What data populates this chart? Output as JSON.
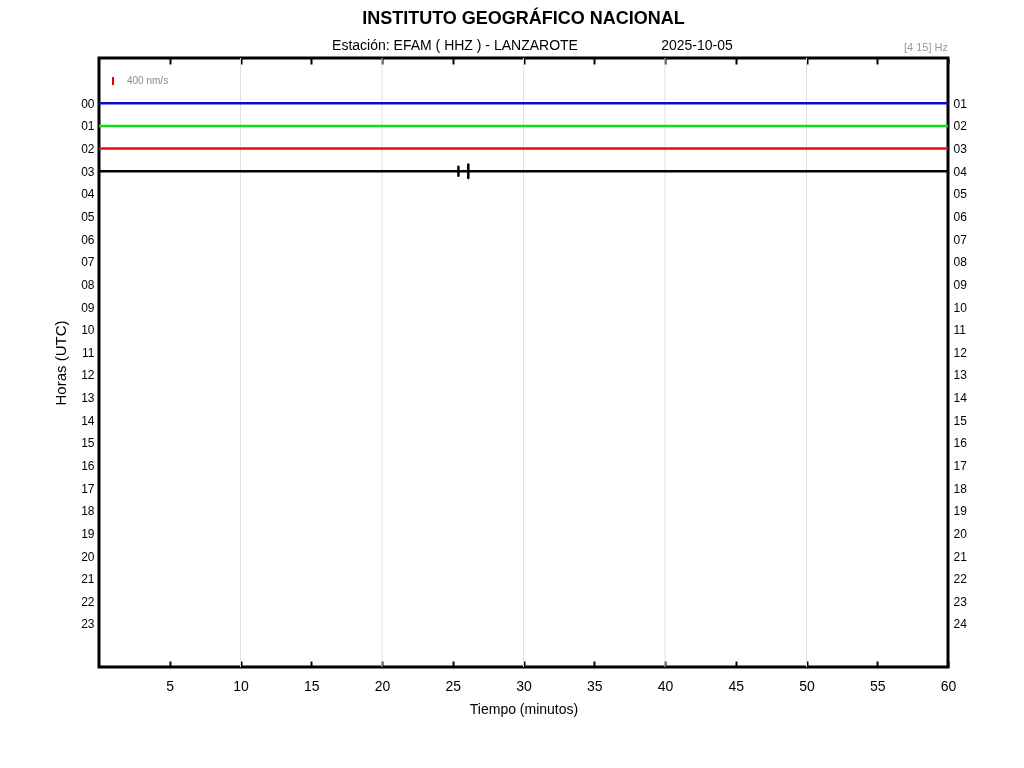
{
  "chart_data": {
    "type": "line",
    "title": "INSTITUTO GEOGRÁFICO NACIONAL",
    "subtitle": "Estación: EFAM ( HHZ ) - LANZAROTE",
    "xlabel": "Tiempo (minutos)",
    "ylabel": "Horas (UTC)",
    "annotations": [
      "2025-10-05",
      "[4 15] Hz",
      "400 nm/s"
    ],
    "series": [
      {
        "color": "#0a0ac8",
        "x": [
          0,
          60
        ],
        "values": [
          0,
          0
        ]
      },
      {
        "color": "#10e010",
        "x": [
          0,
          60
        ],
        "values": [
          1,
          1
        ]
      },
      {
        "color": "#e01010",
        "x": [
          0,
          60
        ],
        "values": [
          2,
          2
        ]
      },
      {
        "color": "#000000",
        "x": [
          0,
          25.4,
          25.4,
          25.4,
          25.4,
          26.1,
          26.1,
          26.1,
          26.1,
          60
        ],
        "values": [
          3,
          3,
          2.8,
          3.2,
          3,
          3,
          2.7,
          3.3,
          3,
          3
        ]
      }
    ],
    "xlim": [
      0,
      60
    ],
    "xticks": [
      5,
      10,
      15,
      20,
      25,
      30,
      35,
      40,
      45,
      50,
      55,
      60
    ],
    "ylim": [
      24.9,
      -2
    ],
    "yticks": [
      {
        "value": 0,
        "label": "00"
      },
      {
        "value": 1,
        "label": "01"
      },
      {
        "value": 2,
        "label": "02"
      },
      {
        "value": 3,
        "label": "03"
      },
      {
        "value": 4,
        "label": "04"
      },
      {
        "value": 5,
        "label": "05"
      },
      {
        "value": 6,
        "label": "06"
      },
      {
        "value": 7,
        "label": "07"
      },
      {
        "value": 8,
        "label": "08"
      },
      {
        "value": 9,
        "label": "09"
      },
      {
        "value": 10,
        "label": "10"
      },
      {
        "value": 11,
        "label": "11"
      },
      {
        "value": 12,
        "label": "12"
      },
      {
        "value": 13,
        "label": "13"
      },
      {
        "value": 14,
        "label": "14"
      },
      {
        "value": 15,
        "label": "15"
      },
      {
        "value": 16,
        "label": "16"
      },
      {
        "value": 17,
        "label": "17"
      },
      {
        "value": 18,
        "label": "18"
      },
      {
        "value": 19,
        "label": "19"
      },
      {
        "value": 20,
        "label": "20"
      },
      {
        "value": 21,
        "label": "21"
      },
      {
        "value": 22,
        "label": "22"
      },
      {
        "value": 23,
        "label": "23"
      }
    ],
    "y2lim": [
      25.9,
      -1
    ],
    "y2ticks": [
      {
        "value": 1,
        "label": "01"
      },
      {
        "value": 2,
        "label": "02"
      },
      {
        "value": 3,
        "label": "03"
      },
      {
        "value": 4,
        "label": "04"
      },
      {
        "value": 5,
        "label": "05"
      },
      {
        "value": 6,
        "label": "06"
      },
      {
        "value": 7,
        "label": "07"
      },
      {
        "value": 8,
        "label": "08"
      },
      {
        "value": 9,
        "label": "09"
      },
      {
        "value": 10,
        "label": "10"
      },
      {
        "value": 11,
        "label": "11"
      },
      {
        "value": 12,
        "label": "12"
      },
      {
        "value": 13,
        "label": "13"
      },
      {
        "value": 14,
        "label": "14"
      },
      {
        "value": 15,
        "label": "15"
      },
      {
        "value": 16,
        "label": "16"
      },
      {
        "value": 17,
        "label": "17"
      },
      {
        "value": 18,
        "label": "18"
      },
      {
        "value": 19,
        "label": "19"
      },
      {
        "value": 20,
        "label": "20"
      },
      {
        "value": 21,
        "label": "21"
      },
      {
        "value": 22,
        "label": "22"
      },
      {
        "value": 23,
        "label": "23"
      },
      {
        "value": 24,
        "label": "24"
      }
    ],
    "ref_lines": [
      {
        "axis": "x",
        "value": 10,
        "color": "#e0e0e0"
      },
      {
        "axis": "x",
        "value": 20,
        "color": "#e0e0e0"
      },
      {
        "axis": "x",
        "value": 30,
        "color": "#e0e0e0"
      },
      {
        "axis": "x",
        "value": 40,
        "color": "#e0e0e0"
      },
      {
        "axis": "x",
        "value": 50,
        "color": "#e0e0e0"
      }
    ]
  }
}
